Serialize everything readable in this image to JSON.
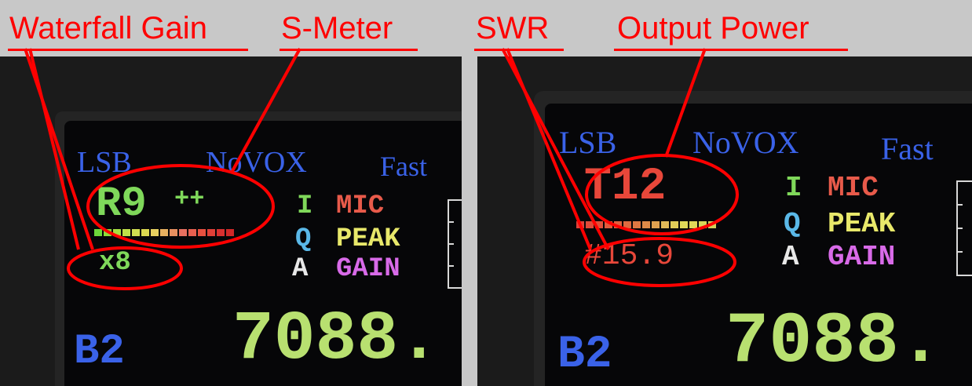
{
  "annotations": {
    "waterfall_gain": "Waterfall Gain",
    "s_meter": "S-Meter",
    "swr": "SWR",
    "output_power": "Output Power"
  },
  "left_display": {
    "mode": "LSB",
    "vox": "NoVOX",
    "agc": "Fast",
    "signal_reading": "R9",
    "signal_plus": "++",
    "waterfall_gain": "x8",
    "iqa_letters": [
      "I",
      "Q",
      "A"
    ],
    "labels": [
      "MIC",
      "PEAK",
      "GAIN"
    ],
    "band": "B2",
    "frequency": "7088."
  },
  "right_display": {
    "mode": "LSB",
    "vox": "NoVOX",
    "agc": "Fast",
    "power_reading": "T12",
    "swr_reading": "#15.9",
    "iqa_letters": [
      "I",
      "Q",
      "A"
    ],
    "labels": [
      "MIC",
      "PEAK",
      "GAIN"
    ],
    "band": "B2",
    "frequency": "7088."
  },
  "colors": {
    "annotation_red": "#ff0000",
    "mode_blue": "#3a62e8",
    "signal_green": "#7fd85a",
    "transmit_red": "#e8473a",
    "mic_red": "#e85a4a",
    "peak_yellow": "#e8e86a",
    "gain_magenta": "#d86ae8",
    "frequency_green": "#b8e070"
  }
}
